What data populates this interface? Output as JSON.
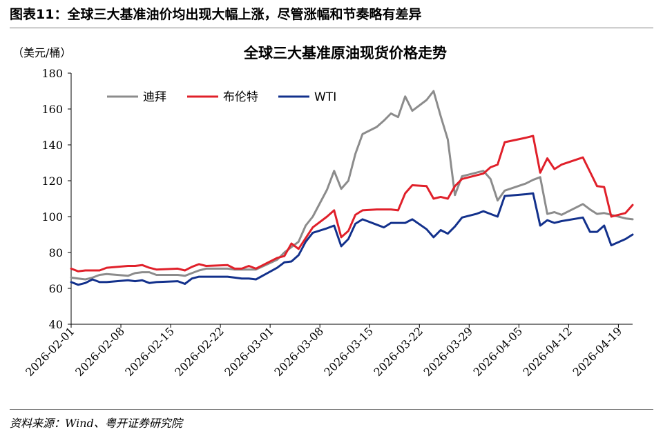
{
  "header": {
    "figure_title": "图表11：全球三大基准油价均出现大幅上涨，尽管涨幅和节奏略有差异",
    "source": "资料来源：Wind、粤开证券研究院"
  },
  "chart_data": {
    "type": "line",
    "title": "全球三大基准原油现货价格走势",
    "ylabel": "（美元/桶）",
    "ylim": [
      40,
      180
    ],
    "yticks": [
      40,
      60,
      80,
      100,
      120,
      140,
      160,
      180
    ],
    "xticks": [
      "2026-02-01",
      "2026-02-08",
      "2026-02-15",
      "2026-02-22",
      "2026-03-01",
      "2026-03-08",
      "2026-03-15",
      "2026-03-22",
      "2026-03-29",
      "2026-04-05",
      "2026-04-12",
      "2026-04-19"
    ],
    "xlim": [
      "2026-02-01",
      "2026-04-21"
    ],
    "grid": false,
    "legend_position": "top-left",
    "series": [
      {
        "name": "迪拜",
        "color": "#8c8c8c",
        "points": [
          [
            "2026-02-01",
            66
          ],
          [
            "2026-02-02",
            65.5
          ],
          [
            "2026-02-03",
            65
          ],
          [
            "2026-02-04",
            66
          ],
          [
            "2026-02-05",
            67.5
          ],
          [
            "2026-02-06",
            68
          ],
          [
            "2026-02-09",
            67
          ],
          [
            "2026-02-10",
            68.5
          ],
          [
            "2026-02-11",
            69
          ],
          [
            "2026-02-12",
            69
          ],
          [
            "2026-02-13",
            67.5
          ],
          [
            "2026-02-16",
            67.5
          ],
          [
            "2026-02-17",
            67
          ],
          [
            "2026-02-18",
            68.5
          ],
          [
            "2026-02-19",
            70
          ],
          [
            "2026-02-20",
            71
          ],
          [
            "2026-02-23",
            71
          ],
          [
            "2026-02-24",
            70.5
          ],
          [
            "2026-02-25",
            70.5
          ],
          [
            "2026-02-26",
            70.5
          ],
          [
            "2026-02-27",
            70.5
          ],
          [
            "2026-03-02",
            76
          ],
          [
            "2026-03-03",
            80
          ],
          [
            "2026-03-04",
            83
          ],
          [
            "2026-03-05",
            86
          ],
          [
            "2026-03-06",
            95
          ],
          [
            "2026-03-07",
            100
          ],
          [
            "2026-03-09",
            115
          ],
          [
            "2026-03-10",
            125.5
          ],
          [
            "2026-03-11",
            115.5
          ],
          [
            "2026-03-12",
            120
          ],
          [
            "2026-03-13",
            135
          ],
          [
            "2026-03-14",
            146
          ],
          [
            "2026-03-16",
            150
          ],
          [
            "2026-03-17",
            153.5
          ],
          [
            "2026-03-18",
            157.5
          ],
          [
            "2026-03-19",
            155.5
          ],
          [
            "2026-03-20",
            167
          ],
          [
            "2026-03-21",
            159
          ],
          [
            "2026-03-23",
            165
          ],
          [
            "2026-03-24",
            170
          ],
          [
            "2026-03-25",
            156
          ],
          [
            "2026-03-26",
            143
          ],
          [
            "2026-03-27",
            112
          ],
          [
            "2026-03-28",
            122.5
          ],
          [
            "2026-03-29",
            123.5
          ],
          [
            "2026-03-30",
            124.5
          ],
          [
            "2026-03-31",
            125.5
          ],
          [
            "2026-04-01",
            121
          ],
          [
            "2026-04-02",
            109
          ],
          [
            "2026-04-03",
            114.5
          ],
          [
            "2026-04-06",
            118.5
          ],
          [
            "2026-04-07",
            120.5
          ],
          [
            "2026-04-08",
            122
          ],
          [
            "2026-04-09",
            101.5
          ],
          [
            "2026-04-10",
            102.5
          ],
          [
            "2026-04-11",
            101
          ],
          [
            "2026-04-14",
            107
          ],
          [
            "2026-04-15",
            104
          ],
          [
            "2026-04-16",
            101.5
          ],
          [
            "2026-04-17",
            102
          ],
          [
            "2026-04-20",
            99
          ],
          [
            "2026-04-21",
            98.5
          ]
        ]
      },
      {
        "name": "布伦特",
        "color": "#e0202a",
        "points": [
          [
            "2026-02-01",
            71
          ],
          [
            "2026-02-02",
            69.5
          ],
          [
            "2026-02-03",
            70
          ],
          [
            "2026-02-04",
            70
          ],
          [
            "2026-02-05",
            70
          ],
          [
            "2026-02-06",
            71.5
          ],
          [
            "2026-02-09",
            72.5
          ],
          [
            "2026-02-10",
            72.5
          ],
          [
            "2026-02-11",
            73
          ],
          [
            "2026-02-12",
            71.5
          ],
          [
            "2026-02-13",
            70.5
          ],
          [
            "2026-02-16",
            71
          ],
          [
            "2026-02-17",
            70
          ],
          [
            "2026-02-18",
            72
          ],
          [
            "2026-02-19",
            73.5
          ],
          [
            "2026-02-20",
            72.5
          ],
          [
            "2026-02-23",
            73
          ],
          [
            "2026-02-24",
            71
          ],
          [
            "2026-02-25",
            71
          ],
          [
            "2026-02-26",
            72.5
          ],
          [
            "2026-02-27",
            71
          ],
          [
            "2026-03-02",
            77
          ],
          [
            "2026-03-03",
            78
          ],
          [
            "2026-03-04",
            85
          ],
          [
            "2026-03-05",
            82
          ],
          [
            "2026-03-06",
            88
          ],
          [
            "2026-03-07",
            94
          ],
          [
            "2026-03-09",
            100
          ],
          [
            "2026-03-10",
            103.5
          ],
          [
            "2026-03-11",
            88.5
          ],
          [
            "2026-03-12",
            92
          ],
          [
            "2026-03-13",
            101
          ],
          [
            "2026-03-14",
            103.5
          ],
          [
            "2026-03-16",
            104
          ],
          [
            "2026-03-17",
            104
          ],
          [
            "2026-03-18",
            104
          ],
          [
            "2026-03-19",
            103.5
          ],
          [
            "2026-03-20",
            113
          ],
          [
            "2026-03-21",
            117.5
          ],
          [
            "2026-03-23",
            117
          ],
          [
            "2026-03-24",
            110
          ],
          [
            "2026-03-25",
            111
          ],
          [
            "2026-03-26",
            110
          ],
          [
            "2026-03-27",
            117
          ],
          [
            "2026-03-28",
            121
          ],
          [
            "2026-03-29",
            122
          ],
          [
            "2026-03-30",
            123
          ],
          [
            "2026-03-31",
            124
          ],
          [
            "2026-04-01",
            127.5
          ],
          [
            "2026-04-02",
            129
          ],
          [
            "2026-04-03",
            141.5
          ],
          [
            "2026-04-06",
            144
          ],
          [
            "2026-04-07",
            145
          ],
          [
            "2026-04-08",
            124.5
          ],
          [
            "2026-04-09",
            132.5
          ],
          [
            "2026-04-10",
            126.5
          ],
          [
            "2026-04-11",
            129
          ],
          [
            "2026-04-14",
            133
          ],
          [
            "2026-04-15",
            125
          ],
          [
            "2026-04-16",
            117
          ],
          [
            "2026-04-17",
            116.5
          ],
          [
            "2026-04-18",
            100
          ],
          [
            "2026-04-20",
            102
          ],
          [
            "2026-04-21",
            106.5
          ]
        ]
      },
      {
        "name": "WTI",
        "color": "#13318c",
        "points": [
          [
            "2026-02-01",
            63.5
          ],
          [
            "2026-02-02",
            62
          ],
          [
            "2026-02-03",
            63
          ],
          [
            "2026-02-04",
            65
          ],
          [
            "2026-02-05",
            63.5
          ],
          [
            "2026-02-06",
            63.5
          ],
          [
            "2026-02-09",
            64.5
          ],
          [
            "2026-02-10",
            64
          ],
          [
            "2026-02-11",
            64.5
          ],
          [
            "2026-02-12",
            63
          ],
          [
            "2026-02-13",
            63.5
          ],
          [
            "2026-02-16",
            64
          ],
          [
            "2026-02-17",
            62.5
          ],
          [
            "2026-02-18",
            65.5
          ],
          [
            "2026-02-19",
            66.5
          ],
          [
            "2026-02-20",
            66.5
          ],
          [
            "2026-02-23",
            66.5
          ],
          [
            "2026-02-24",
            66
          ],
          [
            "2026-02-25",
            65.5
          ],
          [
            "2026-02-26",
            65.5
          ],
          [
            "2026-02-27",
            65
          ],
          [
            "2026-03-02",
            71.5
          ],
          [
            "2026-03-03",
            74.5
          ],
          [
            "2026-03-04",
            75
          ],
          [
            "2026-03-05",
            78.5
          ],
          [
            "2026-03-06",
            86
          ],
          [
            "2026-03-07",
            91
          ],
          [
            "2026-03-09",
            93.5
          ],
          [
            "2026-03-10",
            95
          ],
          [
            "2026-03-11",
            83.5
          ],
          [
            "2026-03-12",
            87.5
          ],
          [
            "2026-03-13",
            96
          ],
          [
            "2026-03-14",
            98.5
          ],
          [
            "2026-03-16",
            95.5
          ],
          [
            "2026-03-17",
            94
          ],
          [
            "2026-03-18",
            96.5
          ],
          [
            "2026-03-19",
            96.5
          ],
          [
            "2026-03-20",
            96.5
          ],
          [
            "2026-03-21",
            98.5
          ],
          [
            "2026-03-23",
            93
          ],
          [
            "2026-03-24",
            88.5
          ],
          [
            "2026-03-25",
            92.5
          ],
          [
            "2026-03-26",
            90.5
          ],
          [
            "2026-03-27",
            94.5
          ],
          [
            "2026-03-28",
            99.5
          ],
          [
            "2026-03-30",
            101.5
          ],
          [
            "2026-03-31",
            103
          ],
          [
            "2026-04-01",
            101.5
          ],
          [
            "2026-04-02",
            100
          ],
          [
            "2026-04-03",
            111.5
          ],
          [
            "2026-04-06",
            112.5
          ],
          [
            "2026-04-07",
            113
          ],
          [
            "2026-04-08",
            95
          ],
          [
            "2026-04-09",
            98
          ],
          [
            "2026-04-10",
            96.5
          ],
          [
            "2026-04-11",
            97.5
          ],
          [
            "2026-04-14",
            99.5
          ],
          [
            "2026-04-15",
            91.5
          ],
          [
            "2026-04-16",
            91.5
          ],
          [
            "2026-04-17",
            95
          ],
          [
            "2026-04-18",
            84
          ],
          [
            "2026-04-20",
            87.5
          ],
          [
            "2026-04-21",
            90
          ]
        ]
      }
    ]
  }
}
